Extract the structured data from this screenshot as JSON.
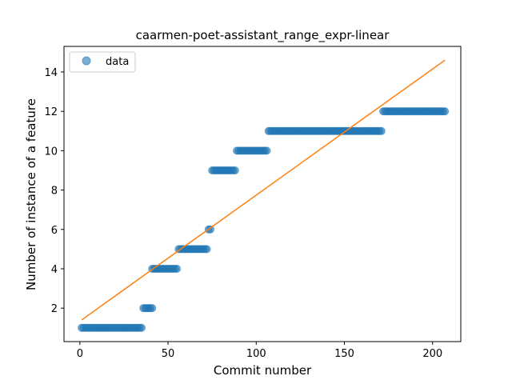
{
  "chart_data": {
    "type": "scatter",
    "title": "caarmen-poet-assistant_range_expr-linear",
    "xlabel": "Commit number",
    "ylabel": "Number of instance of a feature",
    "xlim": [
      -9,
      216
    ],
    "ylim": [
      0.3,
      15.3
    ],
    "xticks": [
      0,
      50,
      100,
      150,
      200
    ],
    "yticks": [
      2,
      4,
      6,
      8,
      10,
      12,
      14
    ],
    "legend": {
      "position": "top-left",
      "entries": [
        "data"
      ]
    },
    "colors": {
      "data": "#1f77b4",
      "fit": "#ff7f0e"
    },
    "series": [
      {
        "name": "data",
        "kind": "scatter",
        "segments": [
          {
            "x_start": 1,
            "x_end": 35,
            "y": 1
          },
          {
            "x_start": 36,
            "x_end": 41,
            "y": 2
          },
          {
            "x_start": 41,
            "x_end": 55,
            "y": 4
          },
          {
            "x_start": 56,
            "x_end": 72,
            "y": 5
          },
          {
            "x_start": 73,
            "x_end": 74,
            "y": 6
          },
          {
            "x_start": 75,
            "x_end": 88,
            "y": 9
          },
          {
            "x_start": 89,
            "x_end": 106,
            "y": 10
          },
          {
            "x_start": 107,
            "x_end": 171,
            "y": 11
          },
          {
            "x_start": 172,
            "x_end": 207,
            "y": 12
          }
        ]
      },
      {
        "kind": "line",
        "x": [
          1,
          207
        ],
        "y": [
          1.4,
          14.6
        ]
      }
    ]
  }
}
